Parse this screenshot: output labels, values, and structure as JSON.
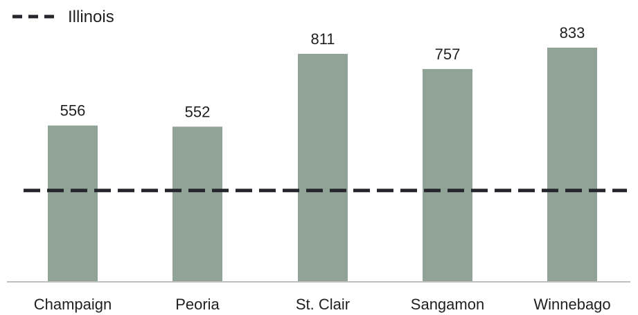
{
  "chart_data": {
    "type": "bar",
    "categories": [
      "Champaign",
      "Peoria",
      "St. Clair",
      "Sangamon",
      "Winnebago"
    ],
    "values": [
      556,
      552,
      811,
      757,
      833
    ],
    "data_labels": [
      "556",
      "552",
      "811",
      "757",
      "833"
    ],
    "reference_line": {
      "name": "Illinois",
      "value": 325,
      "style": "dashed"
    },
    "ylim": [
      0,
      1000
    ],
    "grid": false,
    "legend": {
      "position": "top-left",
      "entries": [
        "Illinois"
      ]
    },
    "colors": {
      "bar": "#91a297",
      "reference": "#24262b",
      "axis": "#bfbfbf"
    },
    "title": "",
    "xlabel": "",
    "ylabel": ""
  }
}
